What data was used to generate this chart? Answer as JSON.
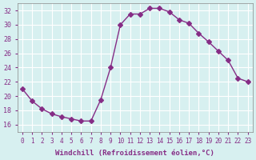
{
  "x": [
    0,
    1,
    2,
    3,
    4,
    5,
    6,
    7,
    8,
    9,
    10,
    11,
    12,
    13,
    14,
    15,
    16,
    17,
    18,
    19,
    20,
    21,
    22,
    23
  ],
  "y": [
    21.0,
    19.3,
    18.2,
    17.5,
    17.1,
    16.8,
    16.5,
    16.5,
    19.5,
    24.0,
    30.0,
    31.5,
    31.5,
    32.3,
    32.3,
    31.8,
    30.7,
    30.2,
    28.8,
    27.6,
    26.3,
    25.0,
    22.5,
    22.0
  ],
  "line_color": "#862d86",
  "marker": "D",
  "marker_size": 3,
  "background_color": "#d7f0f0",
  "grid_color": "#ffffff",
  "xlabel": "Windchill (Refroidissement éolien,°C)",
  "xlabel_color": "#862d86",
  "tick_color": "#862d86",
  "ylim": [
    15,
    33
  ],
  "yticks": [
    16,
    18,
    20,
    22,
    24,
    26,
    28,
    30,
    32
  ],
  "xlim": [
    -0.5,
    23.5
  ],
  "xticks": [
    0,
    1,
    2,
    3,
    4,
    5,
    6,
    7,
    8,
    9,
    10,
    11,
    12,
    13,
    14,
    15,
    16,
    17,
    18,
    19,
    20,
    21,
    22,
    23
  ]
}
